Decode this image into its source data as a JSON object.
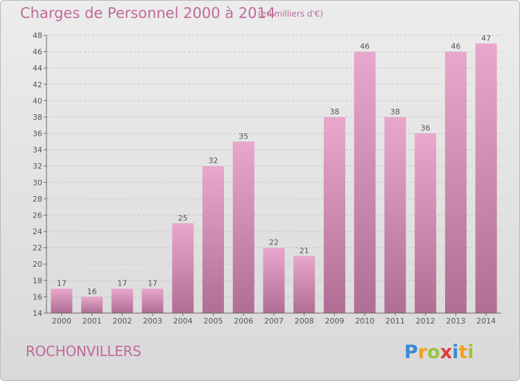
{
  "page": {
    "title": "Charges de Personnel 2000 à 2014",
    "subtitle": "(en milliers d'€)",
    "place": "ROCHONVILLERS",
    "logo_text": "Proxiti"
  },
  "colors": {
    "title": "#c06a9a",
    "bar_top": "#e8a7cc",
    "bar_bottom": "#b06e95",
    "background_top": "#ececec",
    "background_bottom": "#d9d9d9"
  },
  "chart_data": {
    "type": "bar",
    "title": "Charges de Personnel 2000 à 2014",
    "subtitle": "(en milliers d'€)",
    "xlabel": "",
    "ylabel": "",
    "categories": [
      "2000",
      "2001",
      "2002",
      "2003",
      "2004",
      "2005",
      "2006",
      "2007",
      "2008",
      "2009",
      "2010",
      "2011",
      "2012",
      "2013",
      "2014"
    ],
    "values": [
      17,
      16,
      17,
      17,
      25,
      32,
      35,
      22,
      21,
      38,
      46,
      38,
      36,
      46,
      47
    ],
    "ylim": [
      14,
      48
    ],
    "yticks": [
      14,
      16,
      18,
      20,
      22,
      24,
      26,
      28,
      30,
      32,
      34,
      36,
      38,
      40,
      42,
      44,
      46,
      48
    ],
    "grid": true,
    "legend": "none"
  }
}
